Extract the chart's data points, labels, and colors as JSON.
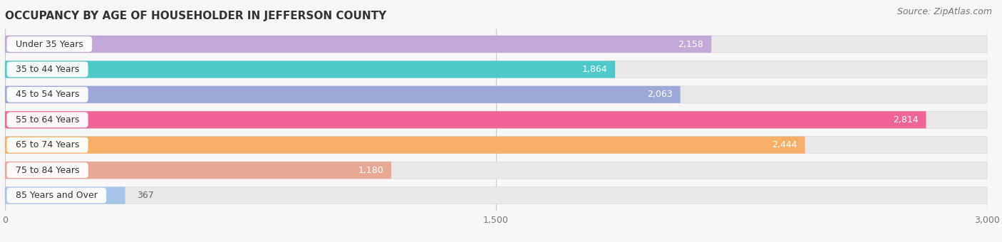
{
  "title": "OCCUPANCY BY AGE OF HOUSEHOLDER IN JEFFERSON COUNTY",
  "source": "Source: ZipAtlas.com",
  "categories": [
    "Under 35 Years",
    "35 to 44 Years",
    "45 to 54 Years",
    "55 to 64 Years",
    "65 to 74 Years",
    "75 to 84 Years",
    "85 Years and Over"
  ],
  "values": [
    2158,
    1864,
    2063,
    2814,
    2444,
    1180,
    367
  ],
  "bar_colors": [
    "#c2a8d5",
    "#4fc8c8",
    "#9da8d8",
    "#f06498",
    "#f7af68",
    "#e8a898",
    "#a8c4e8"
  ],
  "xlim_max": 3000,
  "xticks": [
    0,
    1500,
    3000
  ],
  "xtick_labels": [
    "0",
    "1,500",
    "3,000"
  ],
  "background_color": "#f7f7f7",
  "bar_bg_color": "#e8e8e8",
  "title_fontsize": 11,
  "source_fontsize": 9,
  "label_fontsize": 9,
  "value_fontsize": 9,
  "bar_height": 0.68,
  "value_inside_threshold": 600
}
